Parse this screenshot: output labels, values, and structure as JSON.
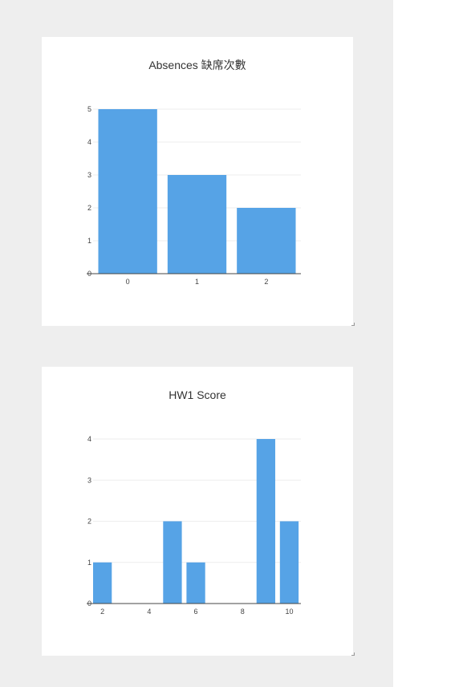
{
  "colors": {
    "bar": "#56a3e6",
    "panel": "#eeeeee",
    "card": "#ffffff"
  },
  "chart_data": [
    {
      "type": "bar",
      "title": "Absences 缺席次數",
      "categories": [
        "0",
        "1",
        "2"
      ],
      "values": [
        5,
        3,
        2
      ],
      "ylim": [
        0,
        5
      ],
      "yticks": [
        0,
        1,
        2,
        3,
        4,
        5
      ],
      "grid": true,
      "legend": "none"
    },
    {
      "type": "bar",
      "title": "HW1 Score",
      "bins": [
        {
          "x": 2,
          "value": 1
        },
        {
          "x": 3,
          "value": 0
        },
        {
          "x": 4,
          "value": 0
        },
        {
          "x": 5,
          "value": 2
        },
        {
          "x": 6,
          "value": 1
        },
        {
          "x": 7,
          "value": 0
        },
        {
          "x": 8,
          "value": 0
        },
        {
          "x": 9,
          "value": 4
        },
        {
          "x": 10,
          "value": 2
        }
      ],
      "xticks": [
        2,
        4,
        6,
        8,
        10
      ],
      "ylim": [
        0,
        4
      ],
      "yticks": [
        0,
        1,
        2,
        3,
        4
      ],
      "grid": true,
      "legend": "none"
    }
  ]
}
